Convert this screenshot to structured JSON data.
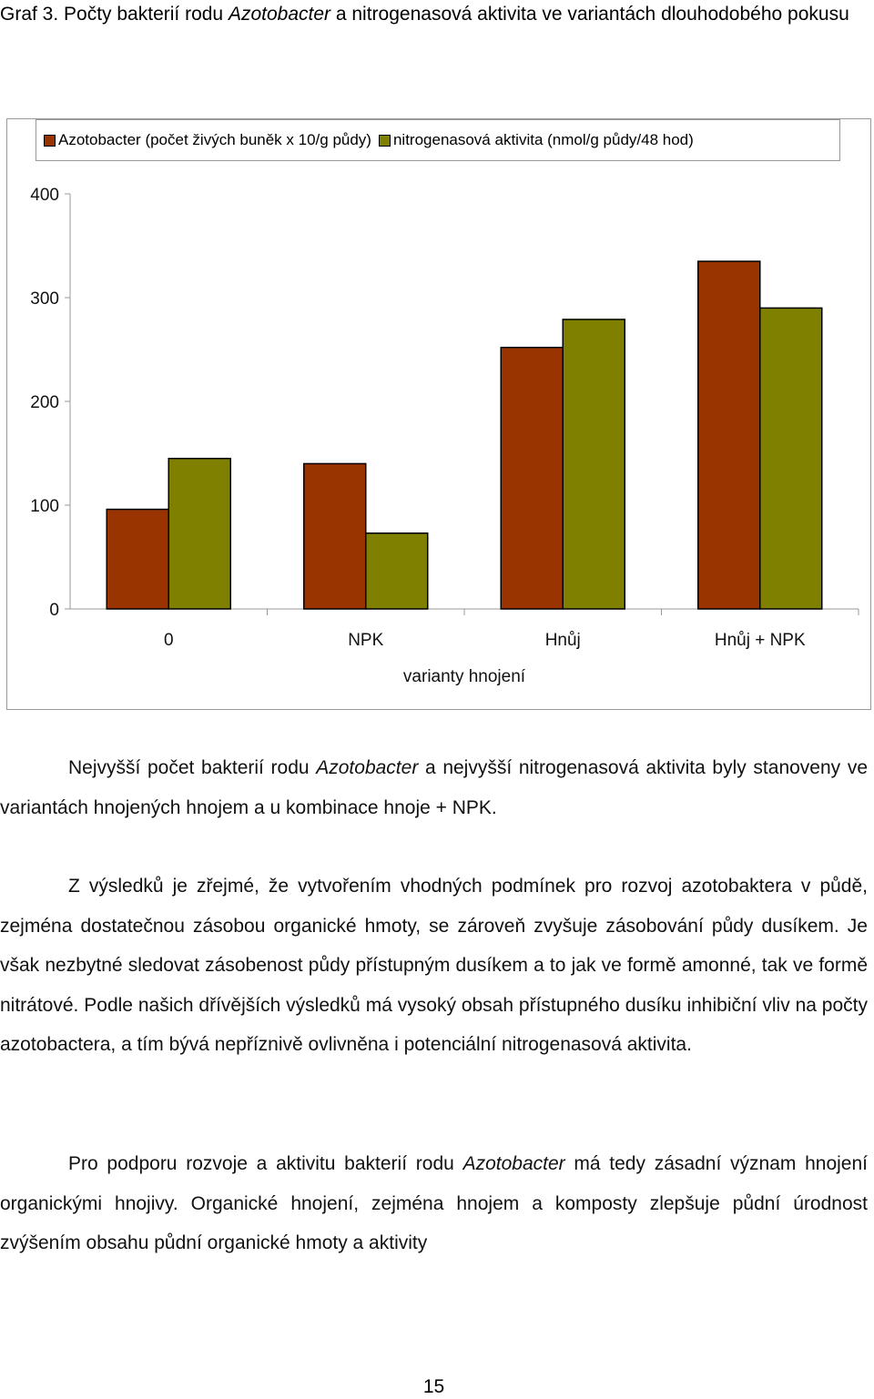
{
  "caption": {
    "prefix": "Graf 3. Počty bakterií rodu ",
    "italic": "Azotobacter",
    "suffix": " a nitrogenasová aktivita ve variantách dlouhodobého pokusu"
  },
  "chart_data": {
    "type": "bar",
    "categories": [
      "0",
      "NPK",
      "Hnůj",
      "Hnůj + NPK"
    ],
    "series": [
      {
        "name": "Azotobacter (počet živých buněk x 10/g půdy)",
        "color": "#993300",
        "values": [
          96,
          140,
          252,
          335
        ]
      },
      {
        "name": "nitrogenasová aktivita (nmol/g půdy/48 hod)",
        "color": "#808000",
        "values": [
          145,
          73,
          279,
          290
        ]
      }
    ],
    "xlabel": "varianty hnojení",
    "ylabel": "",
    "ylim": [
      0,
      400
    ],
    "yticks": [
      "0",
      "100",
      "200",
      "300",
      "400"
    ],
    "grid": false,
    "legend_position": "top"
  },
  "paragraphs": {
    "p1": {
      "a": "Nejvyšší počet bakterií rodu ",
      "italic": "Azotobacter",
      "b": " a nejvyšší nitrogenasová aktivita byly stanoveny ve variantách hnojených hnojem a u kombinace hnoje + NPK."
    },
    "p2": "Z výsledků je zřejmé, že vytvořením vhodných podmínek pro rozvoj azotobaktera v půdě, zejména dostatečnou zásobou organické hmoty, se zároveň zvyšuje zásobování půdy dusíkem. Je však nezbytné sledovat zásobenost půdy přístupným dusíkem a to jak ve formě amonné, tak ve formě nitrátové. Podle našich dřívějších výsledků má vysoký obsah přístupného dusíku inhibiční vliv na počty azotobactera, a tím bývá nepříznivě ovlivněna i potenciální nitrogenasová aktivita.",
    "p3": {
      "a": "Pro podporu rozvoje a aktivitu bakterií rodu ",
      "italic": "Azotobacter",
      "b": " má tedy zásadní význam hnojení organickými hnojivy. Organické hnojení, zejména hnojem a komposty zlepšuje půdní úrodnost zvýšením obsahu půdní organické hmoty a aktivity"
    }
  },
  "page_number": "15"
}
